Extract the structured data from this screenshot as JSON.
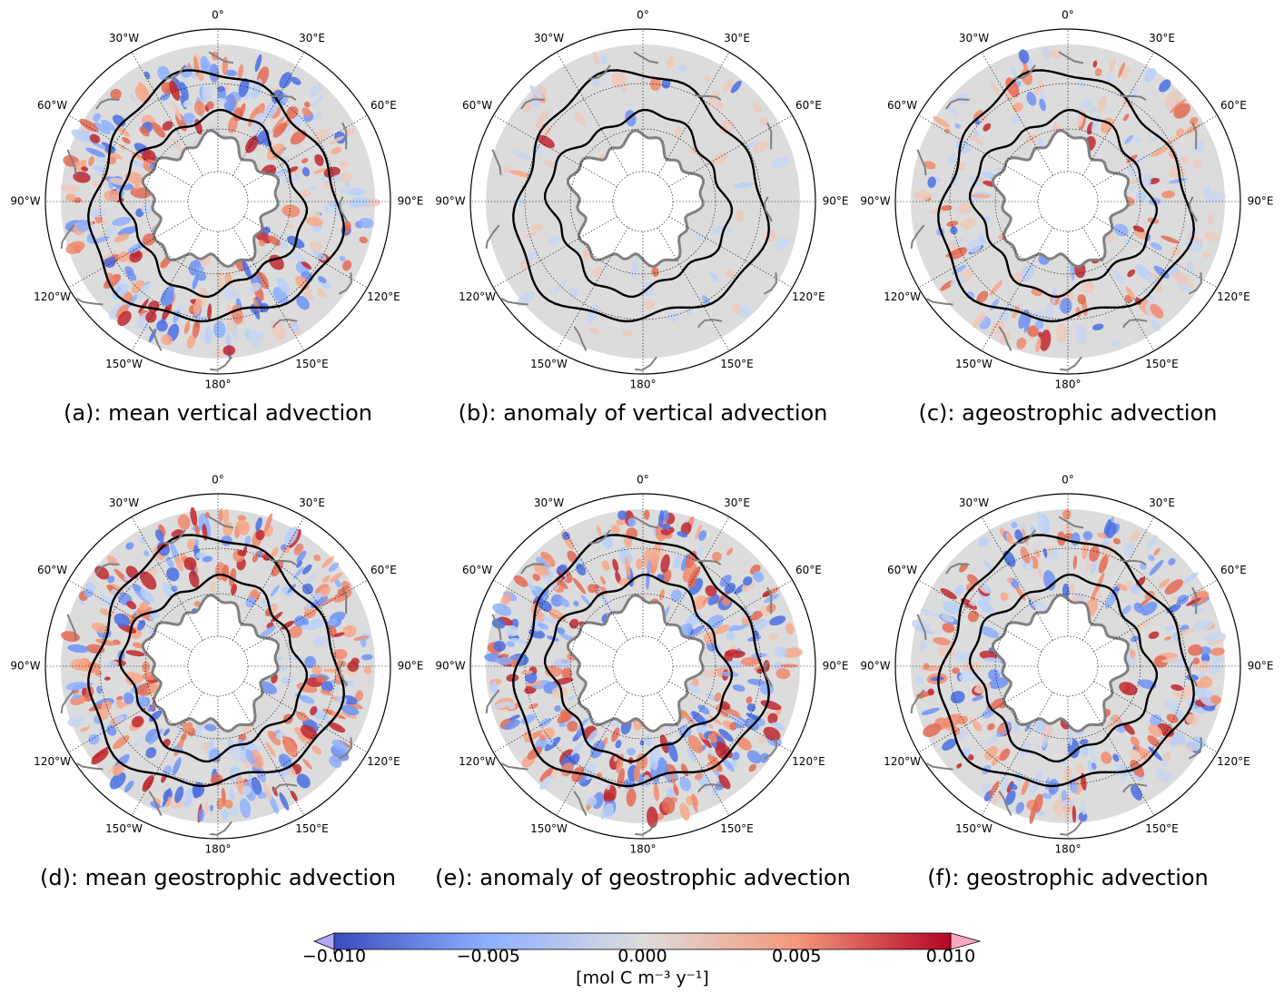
{
  "panels": [
    {
      "caption": "(a): mean vertical advection"
    },
    {
      "caption": "(b): anomaly of vertical advection"
    },
    {
      "caption": "(c): ageostrophic advection"
    },
    {
      "caption": "(d): mean geostrophic advection"
    },
    {
      "caption": "(e): anomaly of geostrophic advection"
    },
    {
      "caption": "(f): geostrophic advection"
    }
  ],
  "longitude_labels": [
    "0°",
    "30°E",
    "60°E",
    "90°E",
    "120°E",
    "150°E",
    "180°",
    "150°W",
    "120°W",
    "90°W",
    "60°W",
    "30°W"
  ],
  "colorbar": {
    "label": "[mol C m⁻³ y⁻¹]",
    "ticks": [
      {
        "value": -0.01,
        "label": "−0.010"
      },
      {
        "value": -0.005,
        "label": "−0.005"
      },
      {
        "value": 0,
        "label": "0.000"
      },
      {
        "value": 0.005,
        "label": "0.005"
      },
      {
        "value": 0.01,
        "label": "0.010"
      }
    ]
  }
}
